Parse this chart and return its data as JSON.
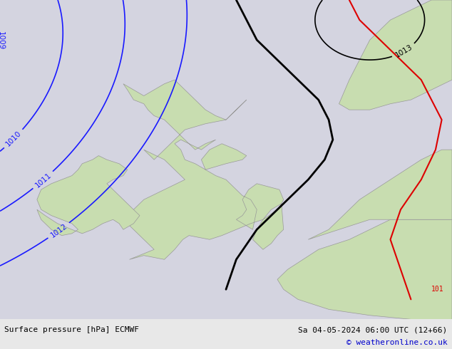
{
  "title_left": "Surface pressure [hPa] ECMWF",
  "title_right": "Sa 04-05-2024 06:00 UTC (12+66)",
  "title_right2": "© weatheronline.co.uk",
  "background_color": "#d4d4e0",
  "land_color": "#c8ddb0",
  "land_edge_color": "#999999",
  "contour_color_blue": "#1a1aff",
  "contour_color_black": "#000000",
  "contour_color_red": "#dd0000",
  "contour_linewidth": 1.2,
  "front_linewidth": 2.0,
  "label_fontsize": 8,
  "footer_bg": "#e8e8e8",
  "lon_min": -12,
  "lon_max": 10,
  "lat_min": 47,
  "lat_max": 63
}
